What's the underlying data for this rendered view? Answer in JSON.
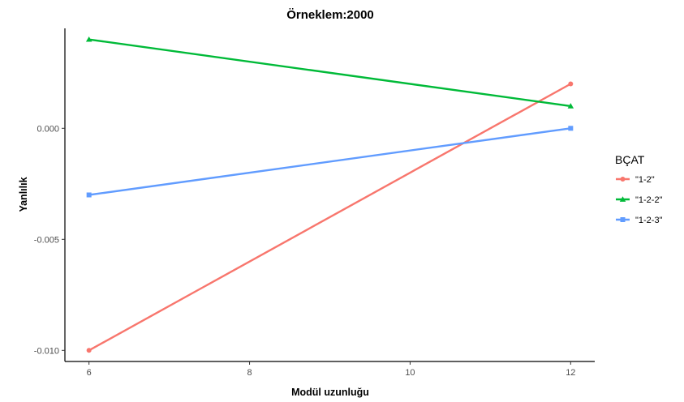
{
  "chart_data": {
    "type": "line",
    "title": "Örneklem:2000",
    "xlabel": "Modül uzunluğu",
    "ylabel": "Yanlılık",
    "x": [
      6,
      12
    ],
    "xlim": [
      5.7,
      12.3
    ],
    "ylim": [
      -0.0105,
      0.0045
    ],
    "xticks": [
      6,
      8,
      10,
      12
    ],
    "xtick_labels": [
      "6",
      "8",
      "10",
      "12"
    ],
    "yticks": [
      -0.01,
      -0.005,
      0.0
    ],
    "ytick_labels": [
      "-0.010",
      "-0.005",
      "0.000"
    ],
    "grid": false,
    "legend": {
      "title": "BÇAT",
      "position": "right"
    },
    "series": [
      {
        "name": "\"1-2\"",
        "values": [
          -0.01,
          0.002
        ],
        "color": "#F8766D",
        "marker": "circle"
      },
      {
        "name": "\"1-2-2\"",
        "values": [
          0.004,
          0.001
        ],
        "color": "#00BA38",
        "marker": "triangle"
      },
      {
        "name": "\"1-2-3\"",
        "values": [
          -0.003,
          0.0
        ],
        "color": "#619CFF",
        "marker": "square"
      }
    ]
  }
}
